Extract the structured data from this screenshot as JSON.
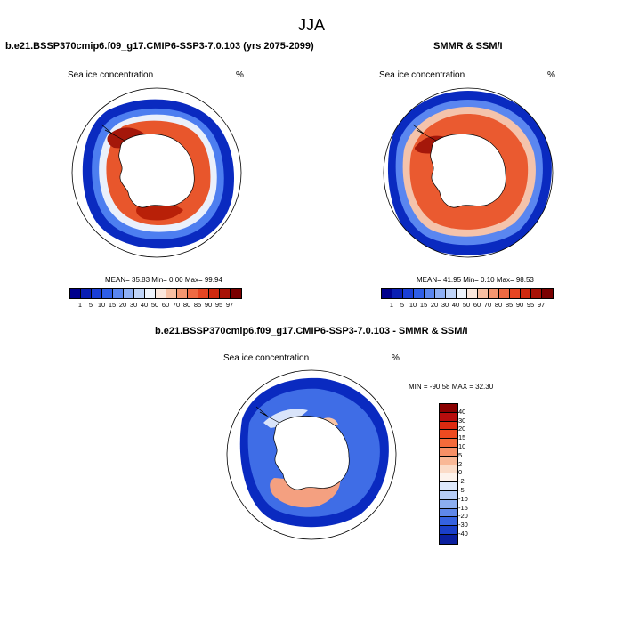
{
  "page": {
    "title": "JJA"
  },
  "panels": {
    "model": {
      "title": "b.e21.BSSP370cmip6.f09_g17.CMIP6-SSP3-7.0.103 (yrs 2075-2099)",
      "left_label": "Sea ice concentration",
      "right_label": "%",
      "stats": "MEAN=  35.83  Min=   0.00  Max=  99.94"
    },
    "obs": {
      "title": "SMMR & SSM/I",
      "left_label": "Sea ice concentration",
      "right_label": "%",
      "stats": "MEAN=  41.95  Min=   0.10  Max=  98.53"
    },
    "diff": {
      "title": "b.e21.BSSP370cmip6.f09_g17.CMIP6-SSP3-7.0.103 - SMMR & SSM/I",
      "left_label": "Sea ice concentration",
      "right_label": "%",
      "stats": "MIN = -90.58 MAX =  32.30"
    }
  },
  "colorbars": {
    "concentration": {
      "labels": [
        "1",
        "5",
        "10",
        "15",
        "20",
        "30",
        "40",
        "50",
        "60",
        "70",
        "80",
        "85",
        "90",
        "95",
        "97"
      ],
      "colors": [
        "#00008c",
        "#0a1fb3",
        "#1a3fd6",
        "#2e5ee8",
        "#5a86f0",
        "#8fb0f5",
        "#c0d4f8",
        "#eef3fb",
        "#fbe7dc",
        "#f8c0a3",
        "#f49670",
        "#ee6a43",
        "#e64522",
        "#cf2a0f",
        "#a81206",
        "#7a0000"
      ]
    },
    "difference": {
      "labels": [
        "40",
        "30",
        "20",
        "15",
        "10",
        "5",
        "2",
        "0",
        "-2",
        "-5",
        "-10",
        "-15",
        "-20",
        "-30",
        "-40"
      ],
      "colors": [
        "#8a0000",
        "#b80d0d",
        "#dd2a10",
        "#ee4a20",
        "#f46a3a",
        "#f79066",
        "#f9b896",
        "#fbdcc8",
        "#fdf3ec",
        "#dde8fb",
        "#b7cdf6",
        "#8caef0",
        "#5f88ea",
        "#3562e0",
        "#1a3fc8",
        "#0a1f9e"
      ]
    }
  },
  "colors": {
    "ice_high": "#b61e05",
    "ice_mid": "#f06a3e",
    "ice_low": "#2c56e6",
    "ice_edge": "#0a1fb3",
    "land": "#ffffff"
  }
}
